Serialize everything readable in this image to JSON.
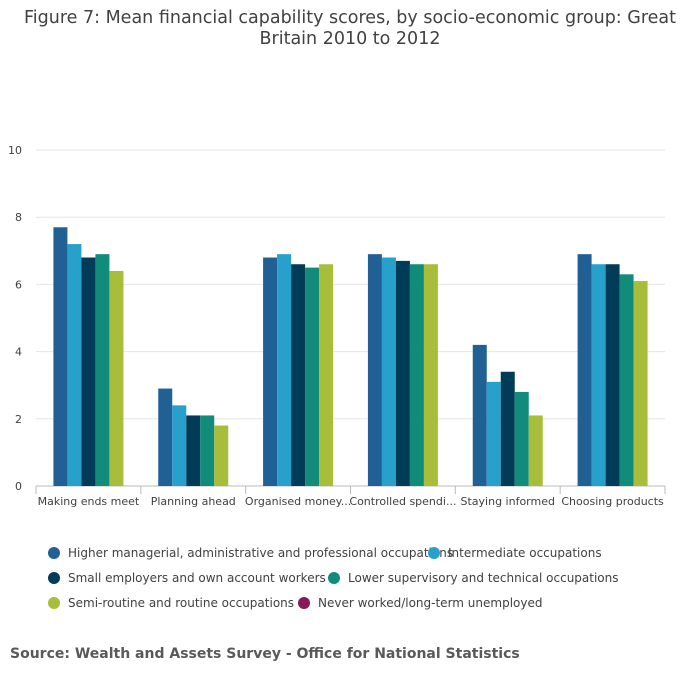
{
  "title": "Figure 7: Mean financial capability scores, by socio-economic group: Great Britain 2010 to 2012",
  "source": "Source: Wealth and Assets Survey - Office for National Statistics",
  "chart_data": {
    "type": "bar",
    "title": "Figure 7: Mean financial capability scores, by socio-economic group: Great Britain 2010 to 2012",
    "xlabel": "",
    "ylabel": "",
    "ylim": [
      0,
      10
    ],
    "yticks": [
      "0",
      "2",
      "4",
      "6",
      "8",
      "10"
    ],
    "grid": true,
    "legend_position": "bottom",
    "categories": [
      "Making ends meet",
      "Planning ahead",
      "Organised money...",
      "Controlled spendi...",
      "Staying informed",
      "Choosing products"
    ],
    "series": [
      {
        "name": "Higher managerial, administrative and professional occupations",
        "color": "#206095",
        "values": [
          7.7,
          2.9,
          6.8,
          6.9,
          4.2,
          6.9
        ]
      },
      {
        "name": "Intermediate occupations",
        "color": "#27a0cc",
        "values": [
          7.2,
          2.4,
          6.9,
          6.8,
          3.1,
          6.6
        ]
      },
      {
        "name": "Small employers and own account workers",
        "color": "#003c57",
        "values": [
          6.8,
          2.1,
          6.6,
          6.7,
          3.4,
          6.6
        ]
      },
      {
        "name": "Lower supervisory and technical occupations",
        "color": "#118c7b",
        "values": [
          6.9,
          2.1,
          6.5,
          6.6,
          2.8,
          6.3
        ]
      },
      {
        "name": "Semi-routine and routine occupations",
        "color": "#a8bd3a",
        "values": [
          6.4,
          1.8,
          6.6,
          6.6,
          2.1,
          6.1
        ]
      },
      {
        "name": "Never worked/long-term unemployed",
        "color": "#871a5b",
        "values": [
          null,
          null,
          null,
          null,
          null,
          null
        ]
      }
    ]
  }
}
